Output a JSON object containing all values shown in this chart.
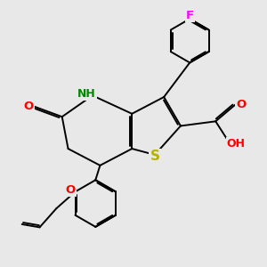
{
  "bg_color": "#e8e8e8",
  "bond_color": "#000000",
  "bond_width": 1.4,
  "dbo": 0.055,
  "atoms": {
    "S": {
      "color": "#b8b000"
    },
    "N": {
      "color": "#0000ff"
    },
    "O": {
      "color": "#ff0000"
    },
    "F": {
      "color": "#ff00ff"
    },
    "NH": {
      "color": "#008800"
    }
  },
  "xlim": [
    0.5,
    9.0
  ],
  "ylim": [
    0.8,
    9.5
  ]
}
